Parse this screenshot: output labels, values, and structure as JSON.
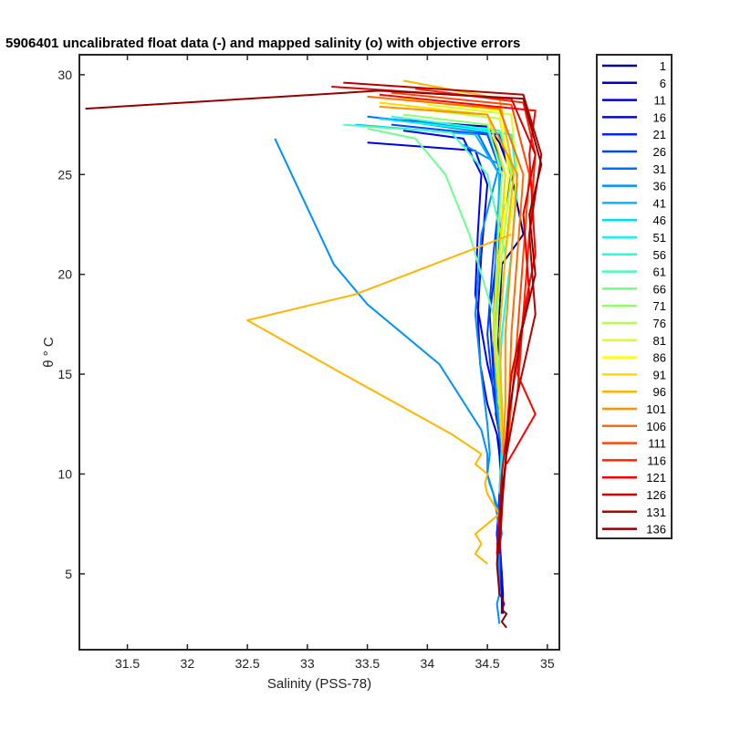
{
  "chart_data": {
    "type": "line",
    "title": "5906401 uncalibrated float data (-) and mapped salinity (o) with objective errors",
    "xlabel": "Salinity (PSS-78)",
    "ylabel": "θ ° C",
    "xlim": [
      31.1,
      35.1
    ],
    "ylim": [
      1.2,
      31
    ],
    "xticks": [
      31.5,
      32,
      32.5,
      33,
      33.5,
      34,
      34.5,
      35
    ],
    "yticks": [
      5,
      10,
      15,
      20,
      25,
      30
    ],
    "grid": false,
    "legend_position": "right-outside",
    "legend": [
      "1",
      "6",
      "11",
      "16",
      "21",
      "26",
      "31",
      "36",
      "41",
      "46",
      "51",
      "56",
      "61",
      "66",
      "71",
      "76",
      "81",
      "86",
      "91",
      "96",
      "101",
      "106",
      "111",
      "116",
      "121",
      "126",
      "131",
      "136"
    ],
    "series": [
      {
        "name": "1",
        "color": "#00008f",
        "x": [
          34.52,
          34.6,
          34.7,
          34.8,
          34.62,
          34.6,
          34.58,
          34.57,
          34.6,
          34.61,
          34.62,
          34.62,
          34.6,
          34.58,
          34.6,
          34.62,
          34.63,
          34.63
        ],
        "y": [
          27.3,
          26.6,
          25,
          22,
          20.5,
          18,
          15,
          13,
          12,
          11,
          10,
          9,
          8,
          7,
          6,
          5,
          4,
          3
        ]
      },
      {
        "name": "6",
        "color": "#0000b4",
        "x": [
          33.6,
          34.5,
          34.62,
          34.58,
          34.56,
          34.55,
          34.57,
          34.6,
          34.6,
          34.61,
          34.62,
          34.6,
          34.58,
          34.6,
          34.62,
          34.63
        ],
        "y": [
          27.8,
          27.4,
          25.5,
          22,
          19,
          16,
          13.5,
          12,
          11,
          10,
          9,
          8,
          7,
          6,
          5,
          3.5
        ]
      },
      {
        "name": "11",
        "color": "#0000da",
        "x": [
          33.5,
          34.4,
          34.5,
          34.45,
          34.42,
          34.44,
          34.5,
          34.58,
          34.6,
          34.62,
          34.6,
          34.58,
          34.6,
          34.62
        ],
        "y": [
          26.6,
          26.2,
          24.5,
          21,
          18,
          15.5,
          13.5,
          12,
          11,
          10,
          8.5,
          7,
          5.5,
          4
        ]
      },
      {
        "name": "16",
        "color": "#0000ff",
        "x": [
          33.8,
          34.3,
          34.45,
          34.42,
          34.4,
          34.5,
          34.6,
          34.62,
          34.6,
          34.6,
          34.62,
          34.62
        ],
        "y": [
          27.2,
          26.8,
          25,
          22,
          19,
          15.5,
          13,
          11,
          9,
          7,
          5,
          3
        ]
      },
      {
        "name": "21",
        "color": "#0024ff",
        "x": [
          33.9,
          34.6,
          34.7,
          34.6,
          34.52,
          34.55,
          34.6,
          34.62,
          34.6,
          34.58,
          34.6
        ],
        "y": [
          27.6,
          27,
          25,
          22,
          18,
          15,
          12.5,
          11,
          9,
          7,
          5
        ]
      },
      {
        "name": "26",
        "color": "#0048ff",
        "x": [
          33.7,
          34.5,
          34.62,
          34.55,
          34.5,
          34.55,
          34.6,
          34.62,
          34.6,
          34.6
        ],
        "y": [
          27.5,
          27,
          25,
          21,
          17,
          14,
          12,
          10.5,
          8.5,
          6
        ]
      },
      {
        "name": "31",
        "color": "#006dff",
        "x": [
          33.5,
          34.4,
          34.6,
          34.6,
          34.55,
          34.58,
          34.62,
          34.6
        ],
        "y": [
          27.9,
          27.3,
          25,
          21,
          17,
          13.5,
          11,
          9
        ]
      },
      {
        "name": "36",
        "color": "#0091ff",
        "x": [
          34.3,
          34.6,
          34.45,
          34.4,
          34.45,
          34.5,
          34.52,
          34.5,
          34.52,
          34.55,
          34.58,
          34.6,
          34.58,
          34.6,
          34.6,
          34.6
        ],
        "y": [
          26.5,
          25.5,
          22,
          18,
          15,
          12.5,
          11,
          10,
          9.5,
          9,
          8,
          7,
          6.5,
          6,
          5,
          4
        ]
      },
      {
        "name": "36",
        "color": "#0091ff",
        "x": [
          32.73,
          33.22,
          33.5,
          34.1,
          34.45,
          34.5,
          34.5,
          34.55,
          34.6,
          34.62,
          34.6,
          34.58,
          34.6,
          34.6,
          34.58,
          34.6
        ],
        "y": [
          26.8,
          20.5,
          18.5,
          15.5,
          12.2,
          11,
          10,
          9,
          8,
          7,
          6.5,
          6,
          5,
          4,
          3.5,
          2.5
        ]
      },
      {
        "name": "41",
        "color": "#00b6ff",
        "x": [
          33.4,
          34.4,
          34.6,
          34.58,
          34.55,
          34.58,
          34.62,
          34.6
        ],
        "y": [
          27.5,
          27,
          25,
          21,
          17,
          13.5,
          11.5,
          9
        ]
      },
      {
        "name": "46",
        "color": "#00daff",
        "x": [
          33.6,
          34.5,
          34.65,
          34.6,
          34.57,
          34.6,
          34.62,
          34.6
        ],
        "y": [
          27.8,
          27.2,
          25,
          21,
          17,
          13.5,
          11.5,
          9
        ]
      },
      {
        "name": "51",
        "color": "#00ffff",
        "x": [
          33.9,
          34.7,
          34.75,
          34.7,
          34.62,
          34.6,
          34.63,
          34.6
        ],
        "y": [
          27.6,
          27,
          24.5,
          21,
          17,
          14,
          11.5,
          9
        ]
      },
      {
        "name": "56",
        "color": "#24ffda",
        "x": [
          33.7,
          34.6,
          34.72,
          34.65,
          34.6,
          34.62,
          34.63
        ],
        "y": [
          27.9,
          27.2,
          25,
          21,
          17,
          13.5,
          11
        ]
      },
      {
        "name": "61",
        "color": "#48ffb6",
        "x": [
          33.3,
          34.2,
          34.5,
          34.65,
          34.6,
          34.62,
          34.63
        ],
        "y": [
          27.5,
          27.1,
          25,
          21,
          17,
          13.5,
          11
        ]
      },
      {
        "name": "66",
        "color": "#6dff91",
        "x": [
          33.5,
          33.9,
          34.15,
          34.35,
          34.55,
          34.6,
          34.62,
          34.63
        ],
        "y": [
          27.3,
          26.8,
          25,
          22,
          18,
          15,
          12.5,
          11
        ]
      },
      {
        "name": "71",
        "color": "#91ff6d",
        "x": [
          33.8,
          34.5,
          34.62,
          34.58,
          34.55,
          34.6,
          34.63
        ],
        "y": [
          28,
          27.5,
          25,
          21,
          17,
          13.5,
          11
        ]
      },
      {
        "name": "76",
        "color": "#b6ff48",
        "x": [
          33.9,
          34.6,
          34.7,
          34.62,
          34.57,
          34.6,
          34.63
        ],
        "y": [
          28.3,
          27.8,
          25,
          21,
          17,
          13.5,
          11
        ]
      },
      {
        "name": "81",
        "color": "#daff24",
        "x": [
          34.0,
          34.7,
          34.75,
          34.65,
          34.6,
          34.62,
          34.63
        ],
        "y": [
          28.5,
          28,
          25,
          21,
          17,
          13.5,
          11
        ]
      },
      {
        "name": "86",
        "color": "#ffff00",
        "x": [
          33.8,
          34.6,
          34.68,
          34.6,
          34.55,
          34.6,
          34.63
        ],
        "y": [
          28.8,
          28.2,
          25,
          21,
          17,
          13.5,
          11
        ]
      },
      {
        "name": "91",
        "color": "#ffda00",
        "x": [
          33.6,
          34.5,
          34.65,
          34.6,
          34.55,
          34.6,
          34.63
        ],
        "y": [
          28.6,
          28,
          25,
          21,
          17,
          13.5,
          11
        ]
      },
      {
        "name": "96",
        "color": "#ffb600",
        "x": [
          33.8,
          34.6,
          34.72,
          34.65,
          34.6,
          34.62,
          34.63
        ],
        "y": [
          29.7,
          28.8,
          25,
          21,
          17,
          13.5,
          11
        ]
      },
      {
        "name": "96",
        "color": "#ffb600",
        "x": [
          34.7,
          33.4,
          32.5,
          33.3,
          33.9,
          34.2,
          34.45,
          34.4,
          34.5,
          34.48,
          34.5,
          34.55,
          34.6,
          34.5,
          34.4,
          34.45,
          34.4,
          34.5
        ],
        "y": [
          22,
          19,
          17.7,
          15,
          13,
          12,
          11,
          10.5,
          10,
          9.5,
          9,
          8.5,
          8,
          7.5,
          7,
          6.5,
          6,
          5.5
        ]
      },
      {
        "name": "101",
        "color": "#ff9100",
        "x": [
          33.6,
          34.5,
          34.75,
          34.7,
          34.65,
          34.65,
          34.63
        ],
        "y": [
          28.4,
          28,
          25,
          21,
          17,
          13.5,
          11
        ]
      },
      {
        "name": "106",
        "color": "#ff6d00",
        "x": [
          33.5,
          34.6,
          34.8,
          34.75,
          34.7,
          34.68,
          34.65
        ],
        "y": [
          28.9,
          28.3,
          25,
          21,
          17,
          13.5,
          11
        ]
      },
      {
        "name": "111",
        "color": "#ff4800",
        "x": [
          33.7,
          34.7,
          34.85,
          34.8,
          34.75,
          34.7,
          34.66
        ],
        "y": [
          29.1,
          28.5,
          25,
          21,
          17,
          13.5,
          11
        ]
      },
      {
        "name": "116",
        "color": "#ff2400",
        "x": [
          33.9,
          34.8,
          34.9,
          34.85,
          34.8,
          34.75,
          34.66
        ],
        "y": [
          29.3,
          28.6,
          26,
          22,
          18,
          14,
          11
        ]
      },
      {
        "name": "121",
        "color": "#ff0000",
        "x": [
          33.6,
          34.9,
          34.85,
          34.9,
          34.8,
          34.75,
          34.9,
          34.66
        ],
        "y": [
          29,
          28.2,
          26,
          21,
          18,
          15,
          13,
          10.5
        ]
      },
      {
        "name": "126",
        "color": "#da0000",
        "x": [
          33.2,
          34.7,
          34.9,
          34.8,
          34.85,
          34.7,
          34.66,
          34.62,
          34.6,
          34.58
        ],
        "y": [
          29.4,
          28.8,
          26,
          23,
          19,
          15,
          12,
          10,
          8,
          6
        ]
      },
      {
        "name": "131",
        "color": "#b60000",
        "x": [
          33.3,
          34.8,
          34.95,
          34.85,
          34.9,
          34.75,
          34.66,
          34.63,
          34.6
        ],
        "y": [
          29.6,
          29,
          26,
          22,
          18,
          14,
          11,
          9,
          6
        ]
      },
      {
        "name": "136",
        "color": "#910000",
        "x": [
          31.15,
          33.6,
          34.8,
          34.95,
          34.85,
          34.9,
          34.78,
          34.68,
          34.65,
          34.62,
          34.6,
          34.58,
          34.6,
          34.62,
          34.64,
          34.62,
          34.66,
          34.62,
          34.66
        ],
        "y": [
          28.3,
          29.2,
          28.8,
          25.5,
          23,
          20,
          17,
          13,
          10.5,
          9,
          7,
          5.5,
          4,
          3.8,
          3.5,
          3.2,
          3,
          2.6,
          2.3
        ]
      }
    ]
  }
}
